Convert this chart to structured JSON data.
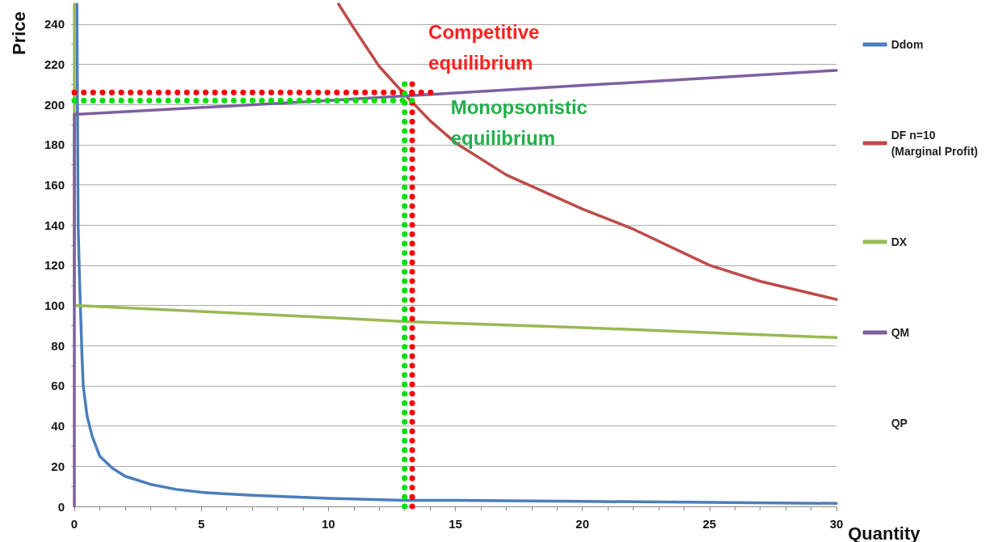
{
  "chart_data": {
    "type": "line",
    "xlabel": "Quantity",
    "ylabel": "Price",
    "xlim": [
      0,
      30
    ],
    "xticks": [
      0,
      5,
      10,
      15,
      20,
      25,
      30
    ],
    "ylim": [
      0,
      250
    ],
    "yticks": [
      0,
      20,
      40,
      60,
      80,
      100,
      120,
      140,
      160,
      180,
      200,
      220,
      240
    ],
    "grid": "y",
    "legend": "right",
    "marker": "none",
    "line_style": "solid",
    "series": [
      {
        "name": "Ddom",
        "color": "#4a7ebb",
        "x": [
          0.1,
          0.15,
          0.2,
          0.25,
          0.3,
          0.35,
          0.5,
          0.7,
          1,
          1.5,
          2,
          3,
          4,
          5,
          7,
          10,
          13,
          15,
          20,
          25,
          30
        ],
        "values": [
          250,
          140,
          115,
          95,
          75,
          60,
          45,
          35,
          25,
          19,
          15,
          11,
          8.5,
          7,
          5.5,
          4,
          3,
          3,
          2.5,
          2,
          1.5
        ]
      },
      {
        "name": "DF n=10\n(Marginal Profit)",
        "color": "#be4b48",
        "x": [
          10.4,
          11,
          12,
          13,
          14,
          15,
          17,
          20,
          22,
          25,
          27,
          30
        ],
        "values": [
          250,
          238,
          219,
          205,
          192,
          181,
          165,
          148,
          138,
          120,
          112,
          103
        ]
      },
      {
        "name": "DX",
        "color": "#98b954",
        "x": [
          0,
          0,
          5,
          10,
          13,
          20,
          25,
          30
        ],
        "values": [
          250,
          100,
          97,
          94,
          92,
          89,
          86.5,
          84
        ]
      },
      {
        "name": "QM",
        "color": "#7d60a0",
        "x": [
          0,
          0,
          10,
          20,
          30
        ],
        "values": [
          0,
          195,
          202,
          209.5,
          217
        ]
      },
      {
        "name": "QP"
      },
      {
        "color": "#ff0000",
        "line_style": "dotted",
        "x": [
          0,
          14.2
        ],
        "values": [
          206,
          206
        ]
      },
      {
        "color": "#ff0000",
        "line_style": "dotted",
        "x": [
          13.3,
          13.3
        ],
        "values": [
          0,
          212
        ]
      },
      {
        "color": "#00e000",
        "line_style": "dotted",
        "x": [
          0,
          13.5
        ],
        "values": [
          202,
          202
        ]
      },
      {
        "color": "#00e000",
        "line_style": "dotted",
        "x": [
          13,
          13
        ],
        "values": [
          0,
          212
        ]
      }
    ],
    "annotations": [
      {
        "text": "Competitive\nequilibrium",
        "x": 13.3,
        "y": 206
      },
      {
        "text": "Monopsonistic\nequilibrium",
        "x": 13,
        "y": 202
      }
    ]
  }
}
